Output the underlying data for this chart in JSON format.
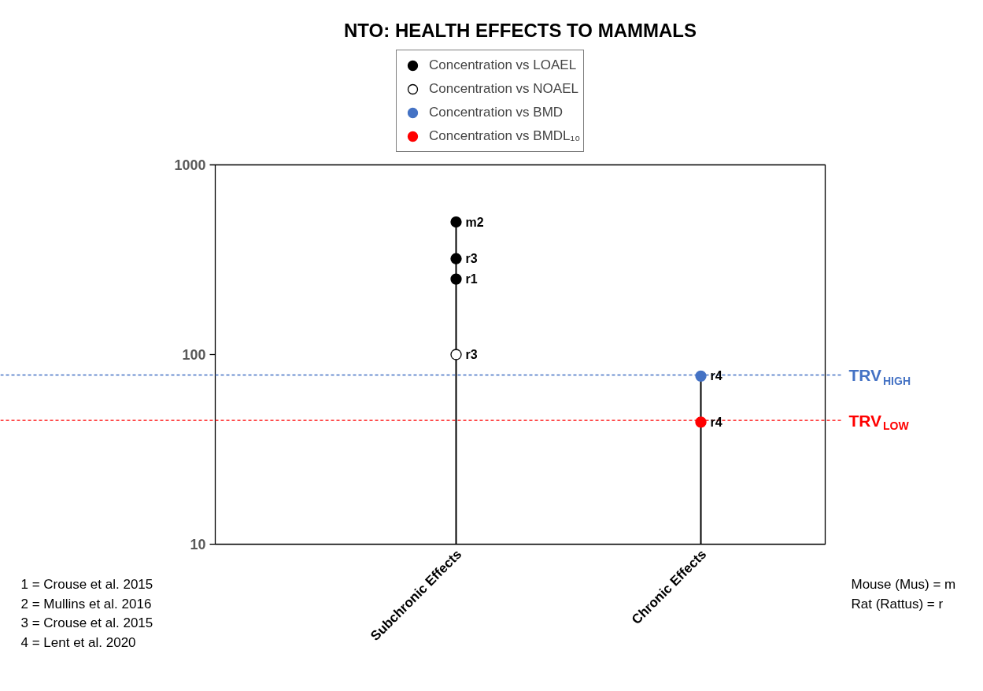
{
  "chart_data": {
    "type": "lollipop",
    "title": "NTO: HEALTH EFFECTS TO MAMMALS",
    "categories": [
      "Subchronic Effects",
      "Chronic Effects"
    ],
    "series": [
      {
        "name": "Concentration vs LOAEL",
        "color": "#000000",
        "x": [
          "Subchronic Effects",
          "Subchronic Effects",
          "Subchronic Effects"
        ],
        "values": [
          500,
          320,
          250
        ],
        "value_labels": [
          "m2",
          "r3",
          "r1"
        ]
      },
      {
        "name": "Concentration vs NOAEL",
        "color": "#ffffff",
        "x": [
          "Subchronic Effects"
        ],
        "values": [
          100
        ],
        "value_labels": [
          "r3"
        ]
      },
      {
        "name": "Concentration vs BMD",
        "color": "#4472c4",
        "x": [
          "Chronic Effects"
        ],
        "values": [
          77
        ],
        "value_labels": [
          "r4"
        ]
      },
      {
        "name": "Concentration vs BMDL₁₀",
        "color": "#ff0000",
        "x": [
          "Chronic Effects"
        ],
        "values": [
          44
        ],
        "value_labels": [
          "r4"
        ]
      }
    ],
    "ylim": [
      10,
      1000
    ],
    "yticks": [
      10,
      100,
      1000
    ],
    "log": true,
    "grid": false,
    "legend": "top",
    "marker": "circle",
    "ref_lines": [
      {
        "axis": "y",
        "value": 78,
        "label": "TRV$_{HIGH}$",
        "color": "#4472c4",
        "line_style": "dashed"
      },
      {
        "axis": "y",
        "value": 45,
        "label": "TRV$_{LOW}$",
        "color": "#ff0000",
        "line_style": "dashed"
      }
    ],
    "annotations": [
      "1 = Crouse et al. 2015",
      "2 = Mullins et al. 2016",
      "3 = Crouse et al. 2015",
      "4 = Lent et al. 2020",
      "Mouse (Mus) = m",
      "Rat (Rattus) = r"
    ]
  }
}
